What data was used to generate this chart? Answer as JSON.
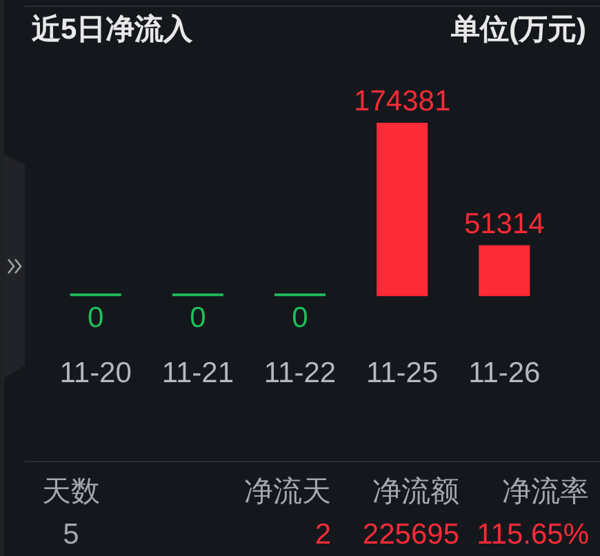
{
  "chart_data": {
    "type": "bar",
    "title": "近5日净流入",
    "subtitle": "单位(万元)",
    "categories": [
      "11-20",
      "11-21",
      "11-22",
      "11-25",
      "11-26"
    ],
    "values": [
      0,
      0,
      0,
      174381,
      51314
    ],
    "colors": [
      "#1ebf5a",
      "#1ebf5a",
      "#1ebf5a",
      "#fc2b37",
      "#fc2b37"
    ],
    "data_labels": true,
    "grid": false,
    "legend": false,
    "annotations": [
      "天数",
      "净流天",
      "净流额",
      "净流率",
      "5",
      "2",
      "225695",
      "115.65%"
    ]
  }
}
